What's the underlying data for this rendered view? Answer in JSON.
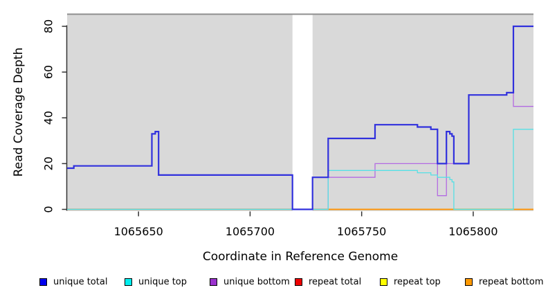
{
  "figure": {
    "background": "#ffffff",
    "plot_bg": "#d9d9d9",
    "top_border_color": "#8f8f8f",
    "masked_band_color": "#ffffff",
    "axis_color": "#333333",
    "text_color": "#000000"
  },
  "legend": {
    "items": [
      {
        "key": "unique_total",
        "label": "unique total",
        "color": "#0000ee"
      },
      {
        "key": "unique_top",
        "label": "unique top",
        "color": "#00eeee"
      },
      {
        "key": "unique_bottom",
        "label": "unique bottom",
        "color": "#9a32cd"
      },
      {
        "key": "repeat_total",
        "label": "repeat total",
        "color": "#ee0000"
      },
      {
        "key": "repeat_top",
        "label": "repeat top",
        "color": "#ffff00"
      },
      {
        "key": "repeat_bottom",
        "label": "repeat bottom",
        "color": "#ff9900"
      }
    ]
  },
  "chart_data": {
    "type": "line",
    "title": "",
    "xlabel": "Coordinate in Reference Genome",
    "ylabel": "Read Coverage Depth",
    "xlim": [
      1065618,
      1065827
    ],
    "ylim": [
      0,
      85.6
    ],
    "x_ticks": [
      1065650,
      1065700,
      1065750,
      1065800
    ],
    "y_ticks": [
      0,
      20,
      40,
      60,
      80
    ],
    "grid": false,
    "legend_position": "bottom",
    "masked_region": [
      1065719,
      1065728
    ],
    "series": [
      {
        "key": "repeat_total",
        "name": "repeat total",
        "color": "#ee0000",
        "width": 1.5,
        "step_points": [
          [
            1065618,
            0
          ],
          [
            1065827,
            0
          ]
        ]
      },
      {
        "key": "repeat_top",
        "name": "repeat top",
        "color": "#ffff00",
        "width": 1.5,
        "step_points": [
          [
            1065618,
            0
          ],
          [
            1065827,
            0
          ]
        ]
      },
      {
        "key": "repeat_bottom",
        "name": "repeat bottom",
        "color": "#ff8c00",
        "width": 1.6,
        "step_points": [
          [
            1065618,
            0
          ],
          [
            1065827,
            0
          ]
        ]
      },
      {
        "key": "unique_bottom",
        "name": "unique bottom",
        "color": "#b36ae2",
        "width": 1.3,
        "step_points": [
          [
            1065618,
            0
          ],
          [
            1065735,
            14
          ],
          [
            1065756,
            20
          ],
          [
            1065784,
            6
          ],
          [
            1065788,
            20
          ],
          [
            1065798,
            50
          ],
          [
            1065815,
            51
          ],
          [
            1065818,
            45
          ],
          [
            1065827,
            45
          ]
        ]
      },
      {
        "key": "unique_top",
        "name": "unique top",
        "color": "#55e0e5",
        "width": 1.3,
        "step_points": [
          [
            1065618,
            0
          ],
          [
            1065735,
            17
          ],
          [
            1065775,
            16
          ],
          [
            1065781,
            15
          ],
          [
            1065784,
            14
          ],
          [
            1065789.5,
            13
          ],
          [
            1065790.5,
            12
          ],
          [
            1065791.3,
            0
          ],
          [
            1065818,
            35
          ],
          [
            1065827,
            35
          ]
        ]
      },
      {
        "key": "unique_total",
        "name": "unique total",
        "color": "#3030dd",
        "width": 2.2,
        "step_points": [
          [
            1065618,
            18
          ],
          [
            1065621,
            19
          ],
          [
            1065656,
            33
          ],
          [
            1065657.5,
            34
          ],
          [
            1065659,
            15
          ],
          [
            1065719,
            0
          ],
          [
            1065728,
            14
          ],
          [
            1065735,
            31
          ],
          [
            1065756,
            37
          ],
          [
            1065775,
            36
          ],
          [
            1065781,
            35
          ],
          [
            1065784,
            20
          ],
          [
            1065788,
            34
          ],
          [
            1065789.5,
            33
          ],
          [
            1065790.5,
            32
          ],
          [
            1065791.3,
            20
          ],
          [
            1065798,
            50
          ],
          [
            1065815,
            51
          ],
          [
            1065818,
            80
          ],
          [
            1065827,
            80
          ]
        ]
      }
    ],
    "baseline_overlays": [
      {
        "from": 1065618,
        "to": 1065735,
        "color": "#78c878"
      },
      {
        "from": 1065791.3,
        "to": 1065818,
        "color": "#78c878"
      }
    ]
  }
}
